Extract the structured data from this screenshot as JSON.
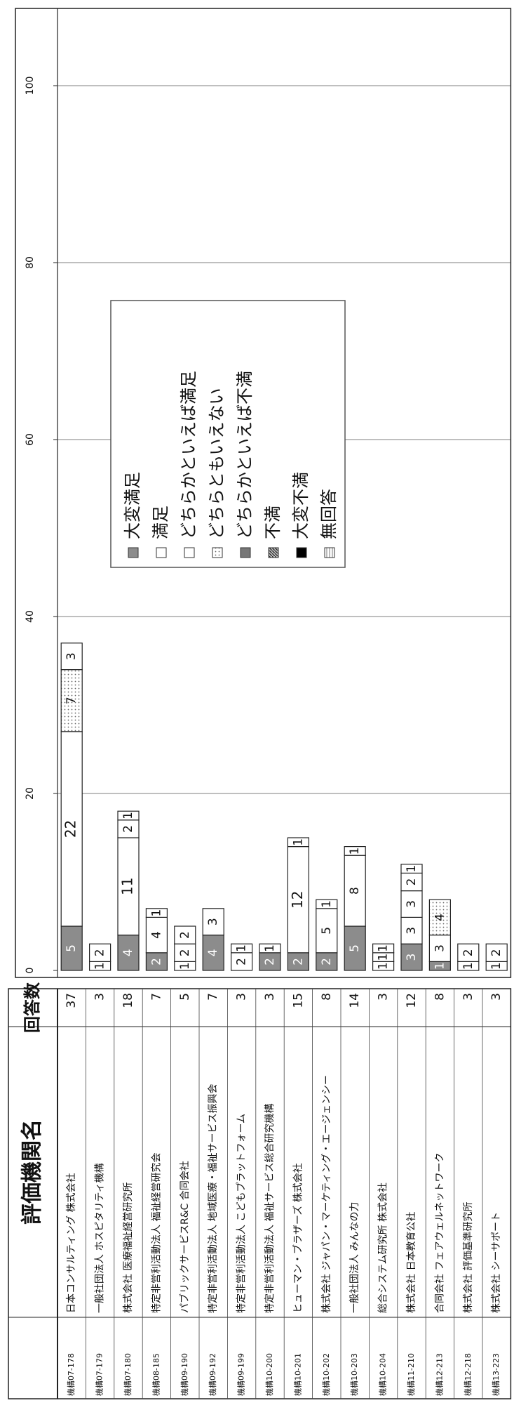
{
  "table": {
    "header_name": "評価機関名",
    "header_count": "回答数"
  },
  "legend": {
    "items": [
      {
        "label": "大変満足",
        "color": "#8c8c8c",
        "pattern": "solid"
      },
      {
        "label": "満足",
        "color": "#ffffff",
        "pattern": "solid"
      },
      {
        "label": "どちらかといえば満足",
        "color": "#ffffff",
        "pattern": "solid"
      },
      {
        "label": "どちらともいえない",
        "color": "#ffffff",
        "pattern": "dots"
      },
      {
        "label": "どちらかといえば不満",
        "color": "#777777",
        "pattern": "solid"
      },
      {
        "label": "不満",
        "color": "#555555",
        "pattern": "hatch"
      },
      {
        "label": "大変不満",
        "color": "#000000",
        "pattern": "solid"
      },
      {
        "label": "無回答",
        "color": "#cfcfcf",
        "pattern": "lines"
      }
    ]
  },
  "chart_data": {
    "type": "bar",
    "orientation": "horizontal-stacked",
    "xlim": [
      0,
      100
    ],
    "x_ticks": [
      "0",
      "20",
      "40",
      "60",
      "80",
      "100"
    ],
    "categories": [
      "日本コンサルティング 株式会社",
      "一般社団法人 ホスピタリティ機構",
      "株式会社 医療福祉経営研究所",
      "特定非営利活動法人 福祉経営研究会",
      "パブリックサービスR&C 合同会社",
      "特定非営利活動法人 地域医療・福祉サービス振興会",
      "特定非営利活動法人 こどもプラットフォーム",
      "特定非営利活動法人 福祉サービス総合研究機構",
      "ヒューマン・ブラザーズ 株式会社",
      "株式会社 ジャパン・マーケティング・エージェンシー",
      "一般社団法人 みんなの力",
      "総合システム研究所 株式会社",
      "株式会社 日本教育公社",
      "合同会社 フェアウェルネットワーク",
      "株式会社 評価基準研究所",
      "株式会社 シーサポート"
    ],
    "ids": [
      "機構07-178",
      "機構07-179",
      "機構07-180",
      "機構08-185",
      "機構09-190",
      "機構09-192",
      "機構09-199",
      "機構10-200",
      "機構10-201",
      "機構10-202",
      "機構10-203",
      "機構10-204",
      "機構11-210",
      "機構12-213",
      "機構12-218",
      "機構13-223"
    ],
    "totals": [
      "37",
      "3",
      "18",
      "7",
      "5",
      "7",
      "3",
      "3",
      "15",
      "8",
      "14",
      "3",
      "12",
      "8",
      "3",
      "3"
    ],
    "segments": [
      [
        [
          0,
          5,
          "5"
        ],
        [
          1,
          22,
          "22"
        ],
        [
          3,
          7,
          "7"
        ],
        [
          1,
          3,
          "3"
        ]
      ],
      [
        [
          1,
          1,
          "1"
        ],
        [
          1,
          2,
          "2"
        ]
      ],
      [
        [
          0,
          4,
          "4"
        ],
        [
          1,
          11,
          "11"
        ],
        [
          2,
          2,
          "2"
        ],
        [
          2,
          1,
          "1"
        ]
      ],
      [
        [
          0,
          2,
          "2"
        ],
        [
          1,
          4,
          "4"
        ],
        [
          2,
          1,
          "1"
        ]
      ],
      [
        [
          1,
          1,
          "1"
        ],
        [
          1,
          2,
          "2"
        ],
        [
          1,
          2,
          "2"
        ]
      ],
      [
        [
          0,
          4,
          "4"
        ],
        [
          1,
          3,
          "3"
        ]
      ],
      [
        [
          1,
          2,
          "2"
        ],
        [
          2,
          1,
          "1"
        ]
      ],
      [
        [
          0,
          2,
          "2"
        ],
        [
          1,
          1,
          "1"
        ]
      ],
      [
        [
          0,
          2,
          "2"
        ],
        [
          1,
          12,
          "12"
        ],
        [
          2,
          1,
          "1"
        ]
      ],
      [
        [
          0,
          2,
          "2"
        ],
        [
          1,
          5,
          "5"
        ],
        [
          2,
          1,
          "1"
        ]
      ],
      [
        [
          0,
          5,
          "5"
        ],
        [
          1,
          8,
          "8"
        ],
        [
          2,
          1,
          "1"
        ]
      ],
      [
        [
          1,
          1,
          "1"
        ],
        [
          2,
          1,
          "1"
        ],
        [
          2,
          1,
          "1"
        ]
      ],
      [
        [
          0,
          3,
          "3"
        ],
        [
          1,
          3,
          "3"
        ],
        [
          1,
          3,
          "3"
        ],
        [
          2,
          2,
          "2"
        ],
        [
          2,
          1,
          "1"
        ]
      ],
      [
        [
          0,
          1,
          "1"
        ],
        [
          1,
          3,
          "3"
        ],
        [
          3,
          4,
          "4"
        ]
      ],
      [
        [
          1,
          1,
          "1"
        ],
        [
          1,
          2,
          "2"
        ]
      ],
      [
        [
          1,
          1,
          "1"
        ],
        [
          1,
          2,
          "2"
        ]
      ]
    ]
  }
}
